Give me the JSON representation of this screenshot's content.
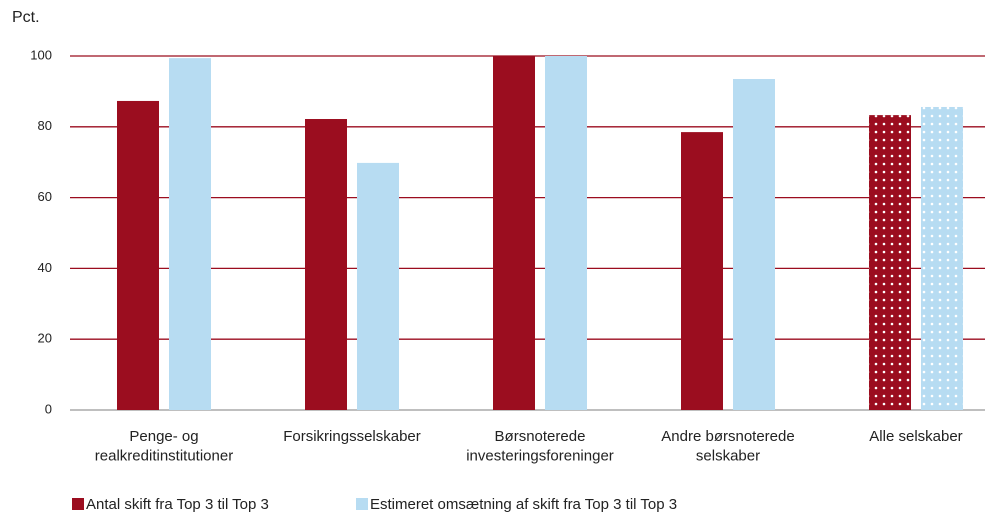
{
  "chart_data": {
    "type": "bar",
    "y_label": "Pct.",
    "categories": [
      "Penge- og\nrealkreditinstitutioner",
      "Forsikringsselskaber",
      "Børsnoterede\ninvesteringsforeninger",
      "Andre børsnoterede\nselskaber",
      "Alle selskaber"
    ],
    "series": [
      {
        "name": "Antal skift fra Top 3 til Top 3",
        "color": "#9b0d1f",
        "values": [
          87.3,
          82.2,
          100,
          78.5,
          83.3
        ]
      },
      {
        "name": "Estimeret omsætning af skift fra Top 3 til Top 3",
        "color": "#b7dcf2",
        "values": [
          99.4,
          69.8,
          100,
          93.5,
          85.6
        ]
      }
    ],
    "dotted_categories": [
      4
    ],
    "ylim": [
      0,
      100
    ],
    "yticks": [
      0,
      20,
      40,
      60,
      80,
      100
    ],
    "grid": true,
    "grid_color": "#9b0d1f",
    "legend": "bottom"
  }
}
